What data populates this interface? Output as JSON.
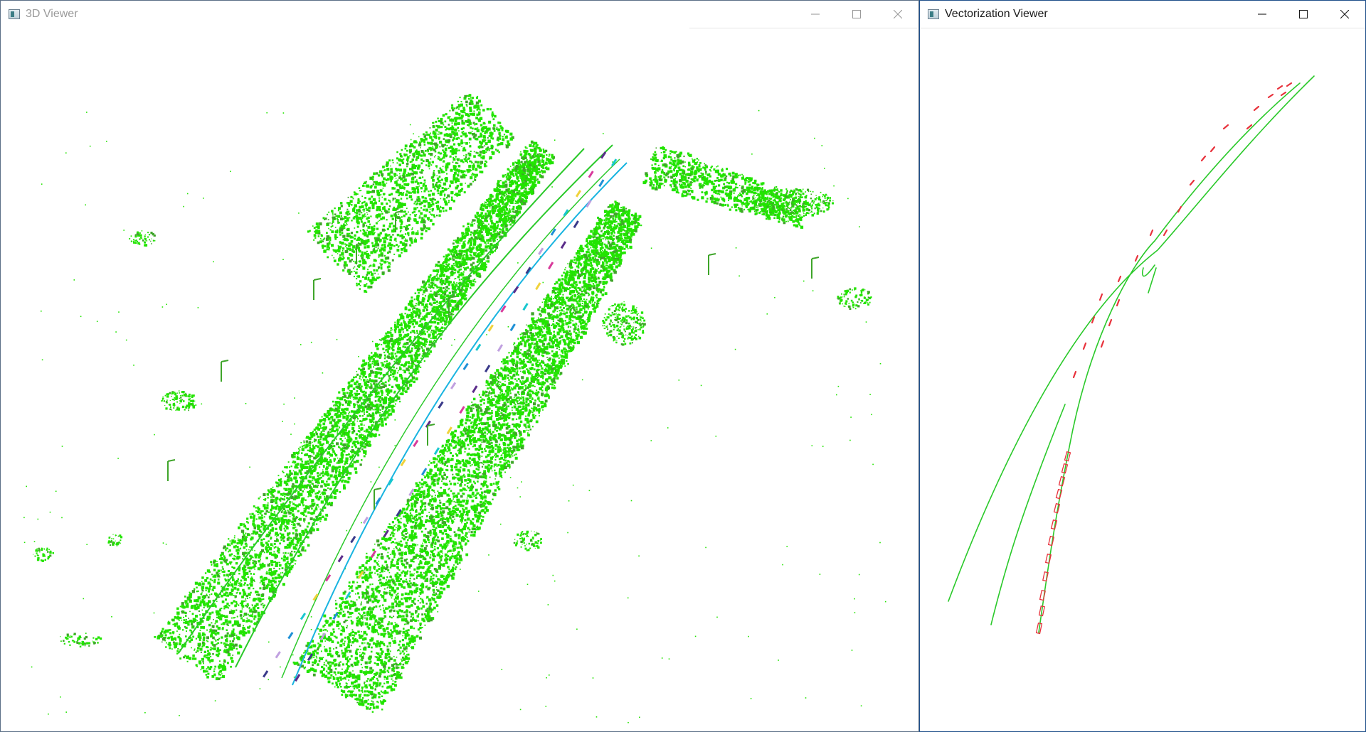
{
  "windows": {
    "viewer3d": {
      "title": "3D Viewer",
      "controls": {
        "minimize": "minimize-icon",
        "maximize": "maximize-icon",
        "close": "close-icon"
      }
    },
    "vectorization": {
      "title": "Vectorization Viewer",
      "controls": {
        "minimize": "minimize-icon",
        "maximize": "maximize-icon",
        "close": "close-icon"
      }
    }
  },
  "colors": {
    "vegetation": "#22e400",
    "vegetation_dark": "#3fa52a",
    "road_edge": "#2ac92a",
    "lane_dash": "#e8323c",
    "window_border_active": "#1f4f8a",
    "window_border_inactive": "#5b6f86",
    "lane_line_colors": [
      "#5b2c8a",
      "#d83a9b",
      "#f0d23a",
      "#18c7cf",
      "#1e90d6",
      "#c0a0e0",
      "#3a3a8a"
    ]
  }
}
